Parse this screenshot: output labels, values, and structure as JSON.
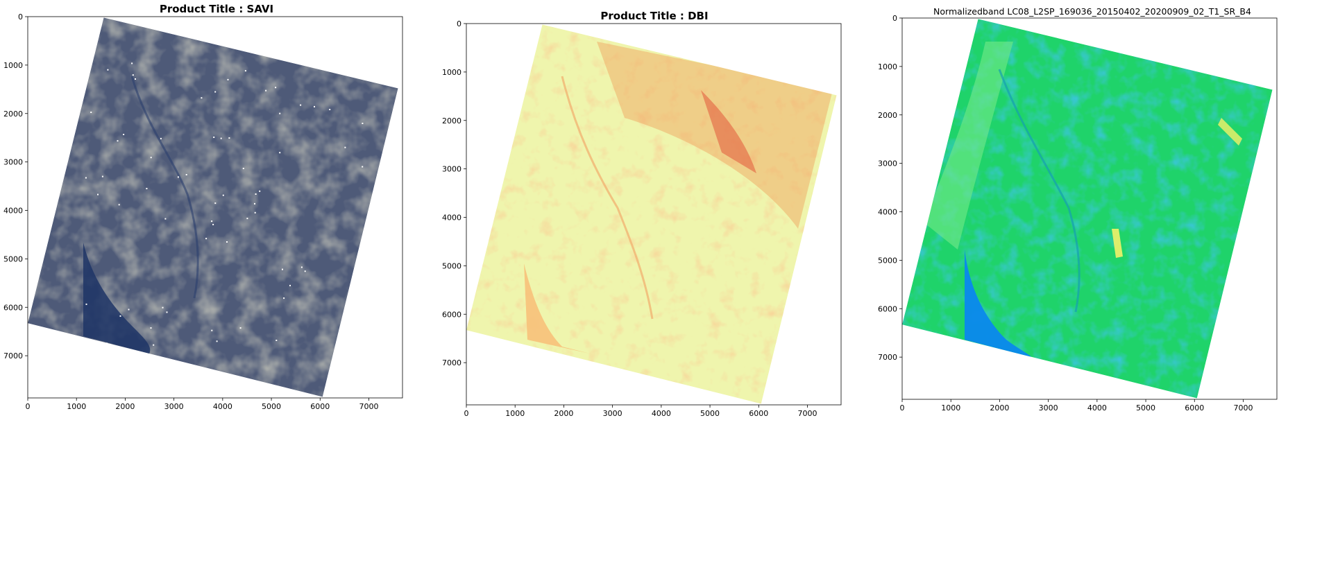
{
  "figure": {
    "panels": [
      {
        "title": "Product Title : SAVI",
        "title_bold": true,
        "colormap": "cividis",
        "colors": {
          "dark": "#1f3566",
          "mid": "#4e5a78",
          "light": "#8f8f7f",
          "water": "#18326e",
          "spot": "#ffffff"
        }
      },
      {
        "title": "Product Title : DBI",
        "title_bold": true,
        "colormap": "Spectral",
        "colors": {
          "base": "#eff5ad",
          "pale": "#f8f2b2",
          "orange": "#f6b56b",
          "red": "#e2583b",
          "lake": "#f7c37c"
        }
      },
      {
        "title": "Normalizedband LC08_L2SP_169036_20150402_20200909_02_T1_SR_B4",
        "title_bold": false,
        "colormap": "jet-like",
        "colors": {
          "green": "#1fd36a",
          "lightgreen": "#6ee886",
          "blue": "#0b8bea",
          "teal": "#16b39e",
          "yellow": "#e8ef6a"
        }
      }
    ]
  },
  "chart_data": [
    {
      "type": "heatmap",
      "title": "Product Title : SAVI",
      "xlabel": "",
      "ylabel": "",
      "xlim": [
        0,
        7691
      ],
      "ylim": [
        7871,
        0
      ],
      "xticks": [
        0,
        1000,
        2000,
        3000,
        4000,
        5000,
        6000,
        7000
      ],
      "yticks": [
        0,
        1000,
        2000,
        3000,
        4000,
        5000,
        6000,
        7000
      ],
      "footprint": [
        [
          1560,
          20
        ],
        [
          7600,
          1480
        ],
        [
          6050,
          7850
        ],
        [
          0,
          6330
        ]
      ],
      "grid": false
    },
    {
      "type": "heatmap",
      "title": "Product Title : DBI",
      "xlabel": "",
      "ylabel": "",
      "xlim": [
        0,
        7691
      ],
      "ylim": [
        7871,
        0
      ],
      "xticks": [
        0,
        1000,
        2000,
        3000,
        4000,
        5000,
        6000,
        7000
      ],
      "yticks": [
        0,
        1000,
        2000,
        3000,
        4000,
        5000,
        6000,
        7000
      ],
      "footprint": [
        [
          1560,
          20
        ],
        [
          7600,
          1480
        ],
        [
          6050,
          7850
        ],
        [
          0,
          6330
        ]
      ],
      "grid": false
    },
    {
      "type": "heatmap",
      "title": "Normalizedband LC08_L2SP_169036_20150402_20200909_02_T1_SR_B4",
      "xlabel": "",
      "ylabel": "",
      "xlim": [
        0,
        7691
      ],
      "ylim": [
        7871,
        0
      ],
      "xticks": [
        0,
        1000,
        2000,
        3000,
        4000,
        5000,
        6000,
        7000
      ],
      "yticks": [
        0,
        1000,
        2000,
        3000,
        4000,
        5000,
        6000,
        7000
      ],
      "footprint": [
        [
          1560,
          20
        ],
        [
          7600,
          1480
        ],
        [
          6050,
          7850
        ],
        [
          0,
          6330
        ]
      ],
      "grid": false
    }
  ]
}
